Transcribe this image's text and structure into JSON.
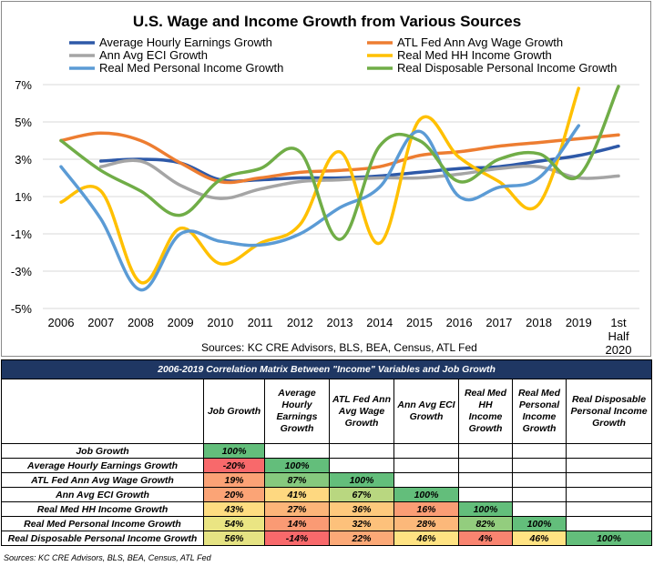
{
  "chart_data": {
    "type": "line",
    "title": "U.S. Wage and Income Growth from Various Sources",
    "source_note": "Sources: KC CRE Advisors, BLS, BEA, Census, ATL Fed",
    "x_categories": [
      "2006",
      "2007",
      "2008",
      "2009",
      "2010",
      "2011",
      "2012",
      "2013",
      "2014",
      "2015",
      "2016",
      "2017",
      "2018",
      "2019",
      "1st Half 2020"
    ],
    "y_ticks": [
      "-5%",
      "-3%",
      "-1%",
      "1%",
      "3%",
      "5%",
      "7%"
    ],
    "ylim": [
      -5,
      7.5
    ],
    "legend_placement": "top",
    "series": [
      {
        "name": "Average Hourly Earnings Growth",
        "color": "#2e59a8",
        "values": [
          null,
          2.9,
          3.0,
          2.8,
          1.9,
          1.9,
          2.0,
          2.0,
          2.1,
          2.3,
          2.5,
          2.6,
          2.9,
          3.2,
          3.7
        ]
      },
      {
        "name": "ATL Fed Ann Avg Wage Growth",
        "color": "#ed7d31",
        "values": [
          4.0,
          4.4,
          4.0,
          2.8,
          1.8,
          2.0,
          2.3,
          2.4,
          2.6,
          3.2,
          3.4,
          3.7,
          3.9,
          4.1,
          4.3
        ]
      },
      {
        "name": "Ann Avg ECI Growth",
        "color": "#a5a5a5",
        "values": [
          null,
          2.6,
          2.9,
          1.6,
          0.9,
          1.4,
          1.8,
          1.9,
          2.0,
          2.0,
          2.2,
          2.5,
          2.6,
          2.0,
          2.1
        ]
      },
      {
        "name": "Real Med HH Income Growth",
        "color": "#ffc000",
        "values": [
          0.7,
          1.3,
          -3.6,
          -0.7,
          -2.6,
          -1.5,
          -0.5,
          3.4,
          -1.5,
          5.1,
          3.1,
          1.8,
          0.6,
          6.8,
          null
        ]
      },
      {
        "name": "Real Med Personal Income Growth",
        "color": "#5b9bd5",
        "values": [
          2.6,
          -0.2,
          -4.0,
          -1.0,
          -1.4,
          -1.6,
          -1.0,
          0.4,
          1.5,
          4.5,
          1.0,
          1.5,
          2.0,
          4.8,
          null
        ]
      },
      {
        "name": "Real Disposable Personal Income Growth",
        "color": "#70ad47",
        "values": [
          4.0,
          2.4,
          1.3,
          0.0,
          1.9,
          2.5,
          3.4,
          -1.3,
          3.7,
          4.0,
          1.8,
          3.0,
          3.3,
          2.1,
          6.9
        ]
      }
    ]
  },
  "matrix": {
    "title": "2006-2019 Correlation Matrix Between \"Income\" Variables and Job Growth",
    "columns": [
      "Job Growth",
      "Average Hourly Earnings Growth",
      "ATL Fed Ann Avg Wage Growth",
      "Ann Avg ECI Growth",
      "Real Med HH Income Growth",
      "Real Med Personal Income Growth",
      "Real Disposable Personal Income Growth"
    ],
    "rows": [
      {
        "label": "Job Growth",
        "cells": [
          "100%",
          "",
          "",
          "",
          "",
          "",
          ""
        ],
        "colors": [
          "#63be7b",
          "",
          "",
          "",
          "",
          "",
          ""
        ]
      },
      {
        "label": "Average Hourly Earnings Growth",
        "cells": [
          "-20%",
          "100%",
          "",
          "",
          "",
          "",
          ""
        ],
        "colors": [
          "#f8696b",
          "#63be7b",
          "",
          "",
          "",
          "",
          ""
        ]
      },
      {
        "label": "ATL Fed Ann Avg Wage Growth",
        "cells": [
          "19%",
          "87%",
          "100%",
          "",
          "",
          "",
          ""
        ],
        "colors": [
          "#fba276",
          "#86c97e",
          "#63be7b",
          "",
          "",
          "",
          ""
        ]
      },
      {
        "label": "Ann Avg ECI Growth",
        "cells": [
          "20%",
          "41%",
          "67%",
          "100%",
          "",
          "",
          ""
        ],
        "colors": [
          "#fba476",
          "#fed880",
          "#b9d780",
          "#63be7b",
          "",
          "",
          ""
        ]
      },
      {
        "label": "Real Med HH Income Growth",
        "cells": [
          "43%",
          "27%",
          "36%",
          "16%",
          "100%",
          "",
          ""
        ],
        "colors": [
          "#fedd81",
          "#fcb579",
          "#fec97d",
          "#fa9d75",
          "#63be7b",
          "",
          ""
        ]
      },
      {
        "label": "Real Med Personal Income Growth",
        "cells": [
          "54%",
          "14%",
          "32%",
          "28%",
          "82%",
          "100%",
          ""
        ],
        "colors": [
          "#eae583",
          "#fa9a74",
          "#fdc17b",
          "#fcb87a",
          "#93cd7e",
          "#63be7b",
          ""
        ]
      },
      {
        "label": "Real Disposable Personal Income Growth",
        "cells": [
          "56%",
          "-14%",
          "22%",
          "46%",
          "4%",
          "46%",
          "100%"
        ],
        "colors": [
          "#e5e383",
          "#f8696b",
          "#fca977",
          "#ffe383",
          "#f98470",
          "#ffe383",
          "#63be7b"
        ]
      }
    ]
  },
  "footnote": "Sources: KC CRE Advisors, BLS, BEA, Census, ATL Fed"
}
